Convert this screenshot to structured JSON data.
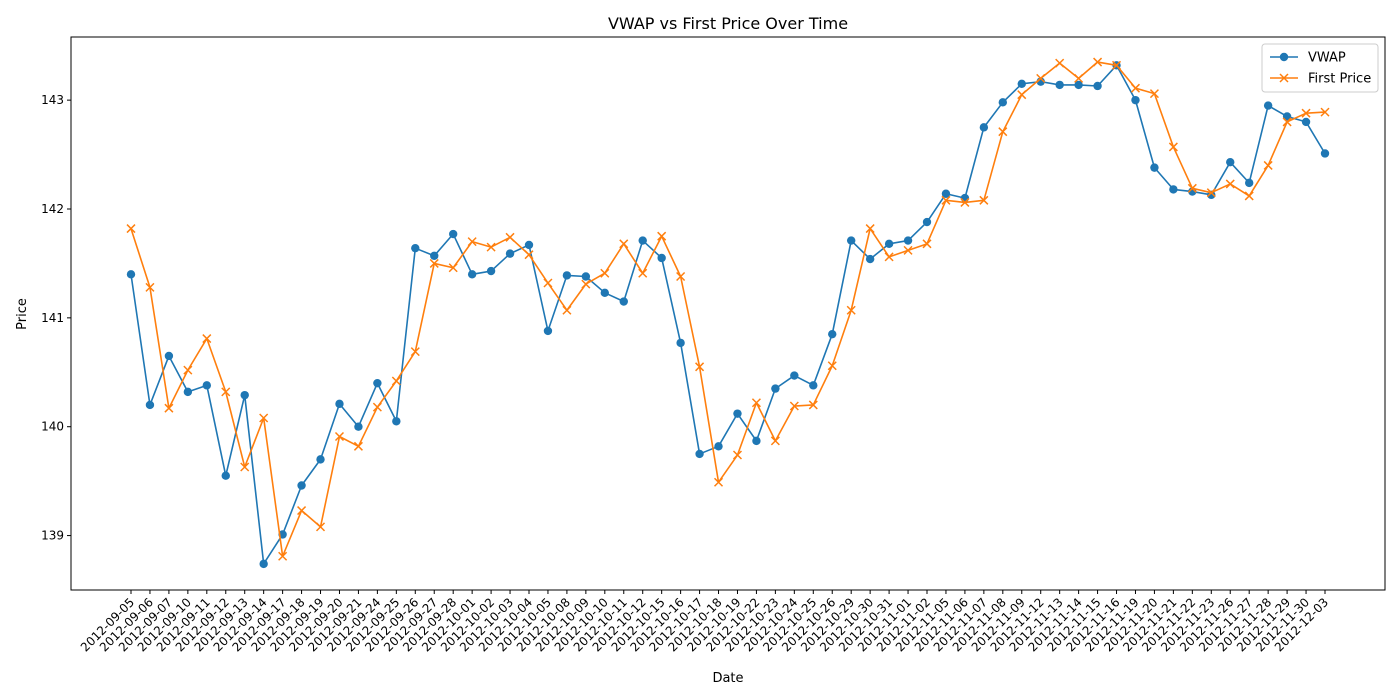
{
  "chart_data": {
    "type": "line",
    "title": "VWAP vs First Price Over Time",
    "xlabel": "Date",
    "ylabel": "Price",
    "ylim": [
      138.5,
      143.58
    ],
    "yticks": [
      139,
      140,
      141,
      142,
      143
    ],
    "grid": false,
    "legend_position": "upper right",
    "x": [
      "2012-09-05",
      "2012-09-06",
      "2012-09-07",
      "2012-09-10",
      "2012-09-11",
      "2012-09-12",
      "2012-09-13",
      "2012-09-14",
      "2012-09-17",
      "2012-09-18",
      "2012-09-19",
      "2012-09-20",
      "2012-09-21",
      "2012-09-24",
      "2012-09-25",
      "2012-09-26",
      "2012-09-27",
      "2012-09-28",
      "2012-10-01",
      "2012-10-02",
      "2012-10-03",
      "2012-10-04",
      "2012-10-05",
      "2012-10-08",
      "2012-10-09",
      "2012-10-10",
      "2012-10-11",
      "2012-10-12",
      "2012-10-15",
      "2012-10-16",
      "2012-10-17",
      "2012-10-18",
      "2012-10-19",
      "2012-10-22",
      "2012-10-23",
      "2012-10-24",
      "2012-10-25",
      "2012-10-26",
      "2012-10-29",
      "2012-10-30",
      "2012-10-31",
      "2012-11-01",
      "2012-11-02",
      "2012-11-05",
      "2012-11-06",
      "2012-11-07",
      "2012-11-08",
      "2012-11-09",
      "2012-11-12",
      "2012-11-13",
      "2012-11-14",
      "2012-11-15",
      "2012-11-16",
      "2012-11-19",
      "2012-11-20",
      "2012-11-21",
      "2012-11-22",
      "2012-11-23",
      "2012-11-26",
      "2012-11-27",
      "2012-11-28",
      "2012-11-29",
      "2012-11-30",
      "2012-12-03"
    ],
    "series": [
      {
        "name": "VWAP",
        "color": "#1f77b4",
        "marker": "circle",
        "values": [
          141.4,
          140.2,
          140.65,
          140.32,
          140.38,
          139.55,
          140.29,
          138.74,
          139.01,
          139.46,
          139.7,
          140.21,
          140.0,
          140.4,
          140.05,
          141.64,
          141.57,
          141.77,
          141.4,
          141.43,
          141.59,
          141.67,
          140.88,
          141.39,
          141.38,
          141.23,
          141.15,
          141.71,
          141.55,
          140.77,
          139.75,
          139.82,
          140.12,
          139.87,
          140.35,
          140.47,
          140.38,
          140.85,
          141.71,
          141.54,
          141.68,
          141.71,
          141.88,
          142.14,
          142.1,
          142.75,
          142.98,
          143.15,
          143.17,
          143.14,
          143.14,
          143.13,
          143.32,
          143.0,
          142.38,
          142.18,
          142.16,
          142.13,
          142.43,
          142.24,
          142.95,
          142.85,
          142.8,
          142.51
        ]
      },
      {
        "name": "First Price",
        "color": "#ff7f0e",
        "marker": "x",
        "values": [
          141.82,
          141.28,
          140.17,
          140.52,
          140.81,
          140.32,
          139.63,
          140.08,
          138.81,
          139.23,
          139.08,
          139.91,
          139.82,
          140.18,
          140.42,
          140.69,
          141.5,
          141.46,
          141.7,
          141.65,
          141.74,
          141.58,
          141.32,
          141.07,
          141.31,
          141.41,
          141.68,
          141.41,
          141.75,
          141.38,
          140.55,
          139.49,
          139.74,
          140.22,
          139.87,
          140.19,
          140.2,
          140.56,
          141.07,
          141.82,
          141.56,
          141.62,
          141.68,
          142.08,
          142.06,
          142.08,
          142.71,
          143.05,
          143.2,
          143.34,
          143.2,
          143.35,
          143.32,
          143.11,
          143.06,
          142.57,
          142.19,
          142.15,
          142.23,
          142.12,
          142.4,
          142.8,
          142.88,
          142.89
        ]
      }
    ]
  }
}
